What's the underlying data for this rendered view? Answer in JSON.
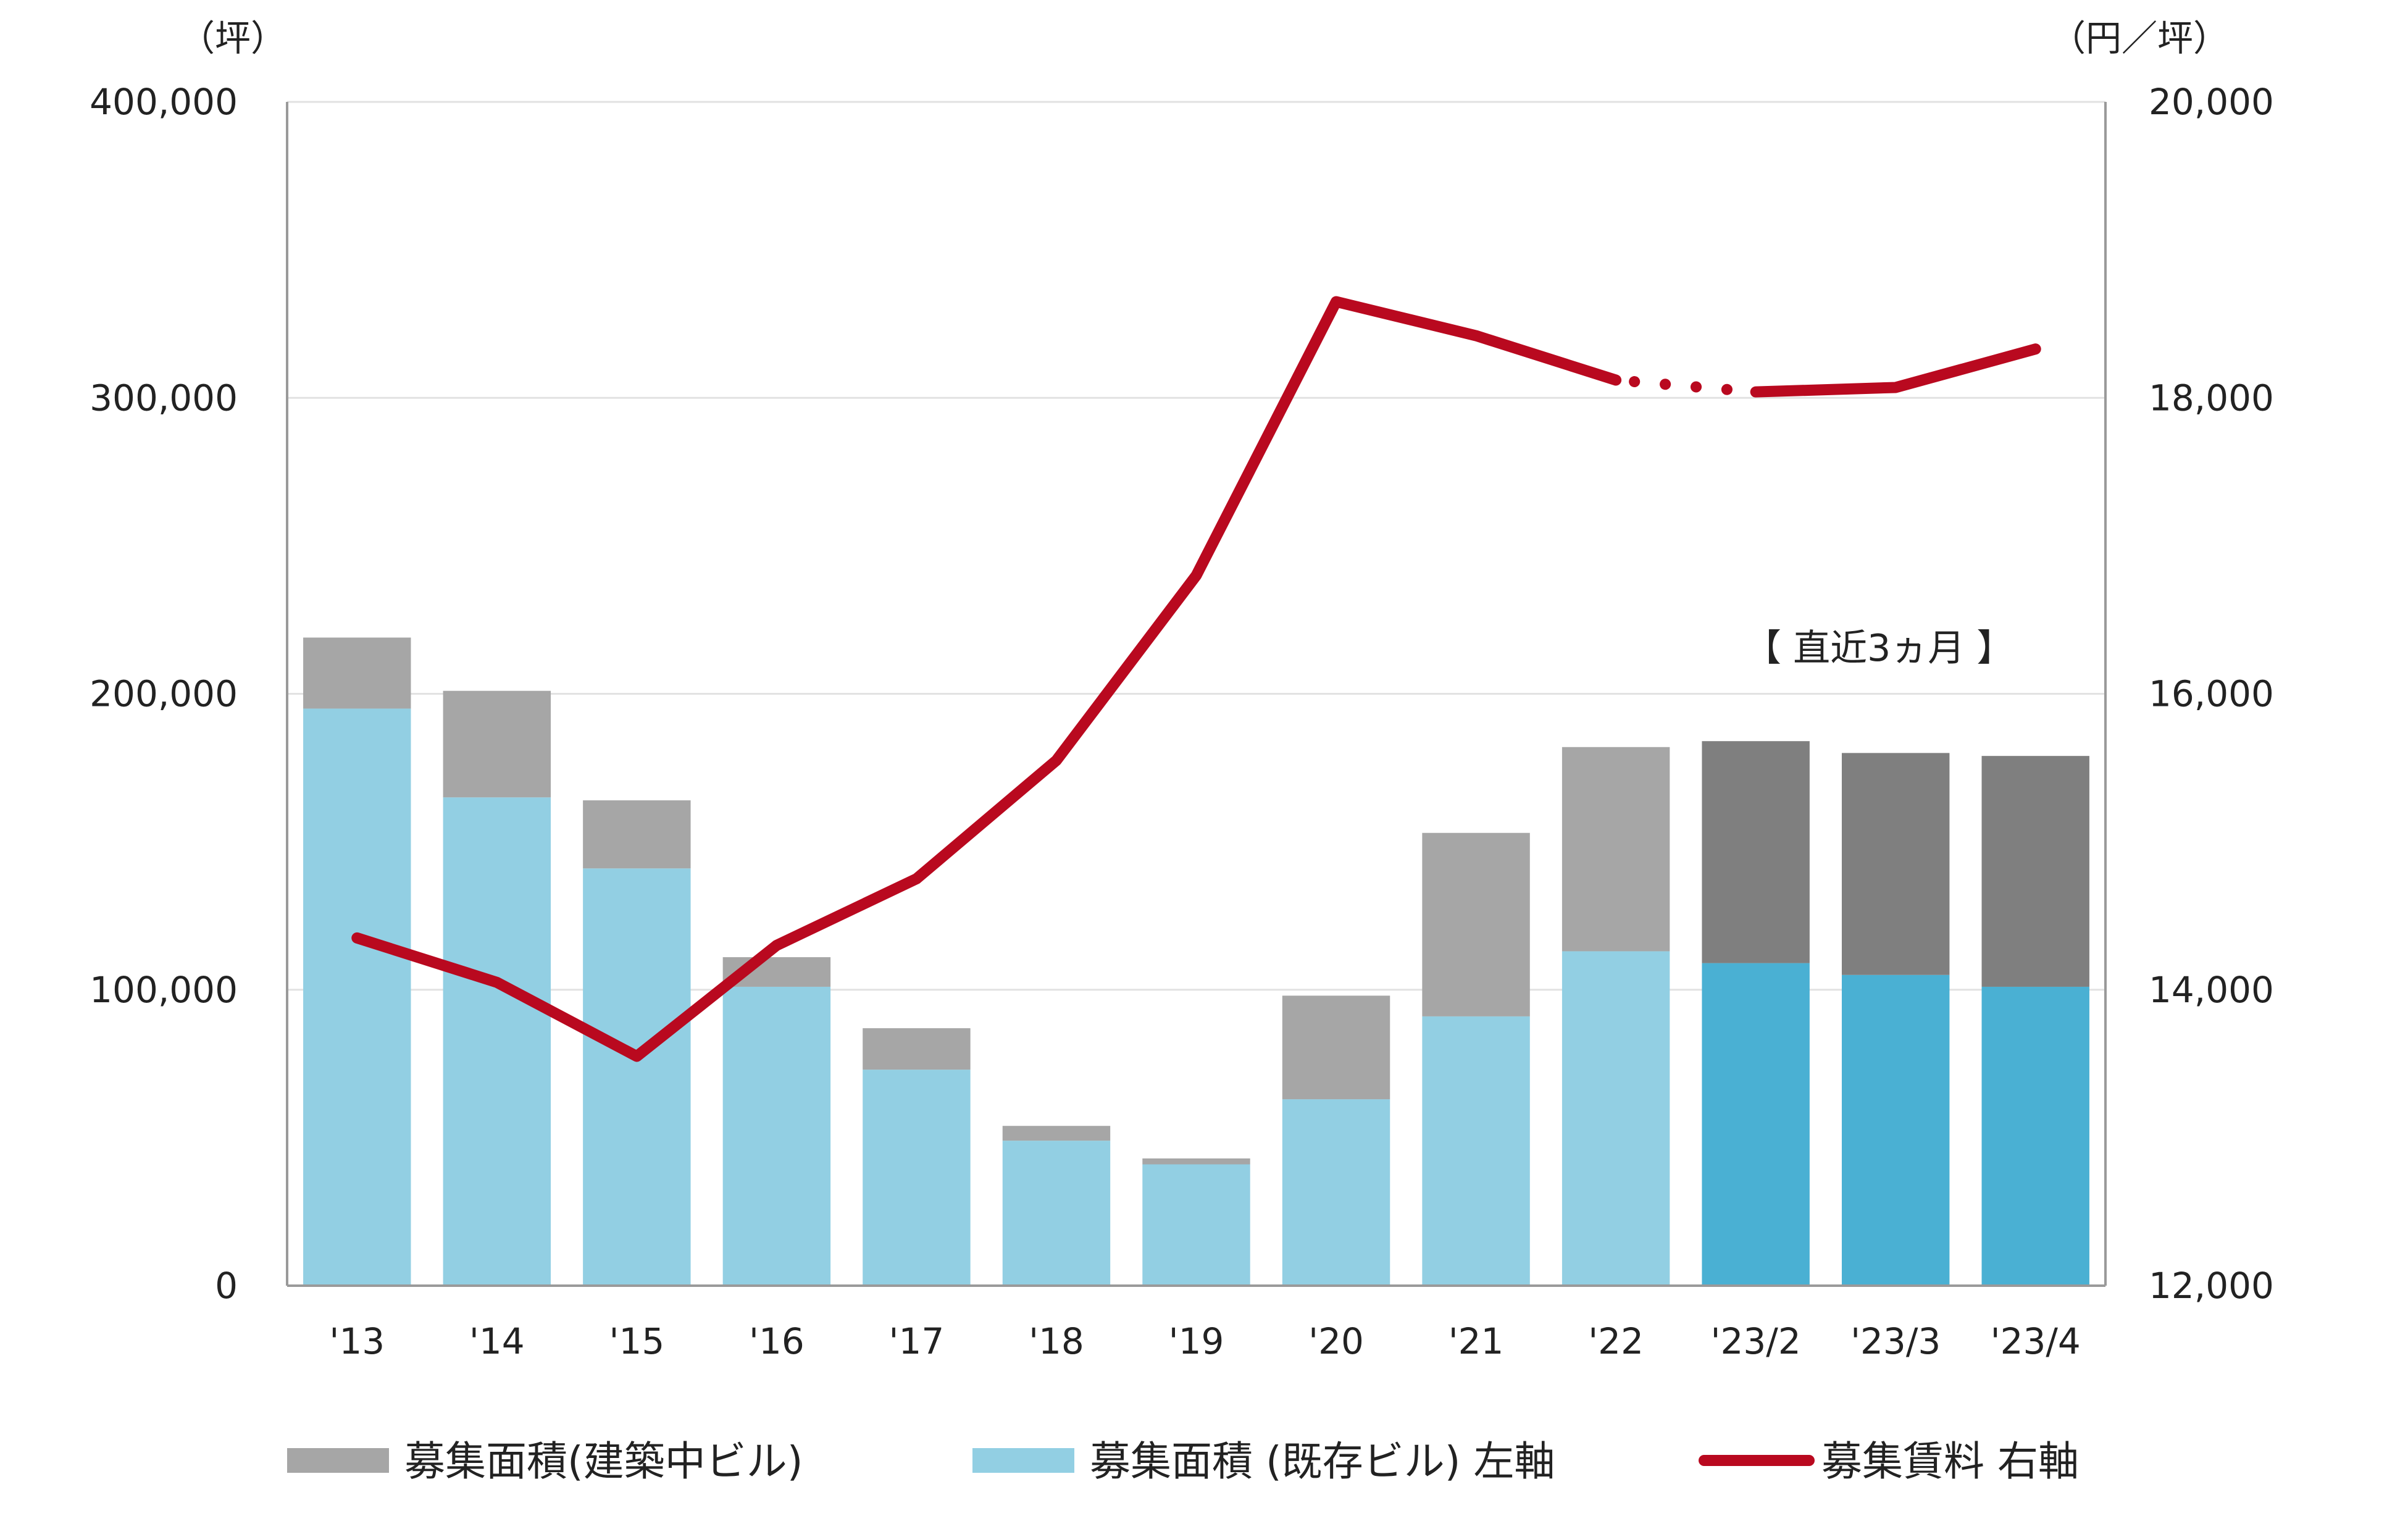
{
  "chart_data": {
    "type": "bar",
    "stacked": true,
    "categories": [
      "'13",
      "'14",
      "'15",
      "'16",
      "'17",
      "'18",
      "'19",
      "'20",
      "'21",
      "'22",
      "'23/2",
      "'23/3",
      "'23/4"
    ],
    "series": [
      {
        "name": "募集面積（既存ビル）左軸",
        "axis": "left",
        "color": "#92cfe3",
        "recent_color": "#4ab0d3",
        "values": [
          195000,
          165000,
          141000,
          101000,
          73000,
          49000,
          41000,
          63000,
          91000,
          113000,
          109000,
          105000,
          101000
        ]
      },
      {
        "name": "募集面積（建築中ビル）",
        "axis": "left",
        "color": "#a6a6a6",
        "recent_color": "#7f7f7f",
        "values": [
          24000,
          36000,
          23000,
          10000,
          14000,
          5000,
          2000,
          35000,
          62000,
          69000,
          75000,
          75000,
          78000
        ]
      },
      {
        "name": "募集賃料 右軸",
        "type": "line",
        "axis": "right",
        "color": "#b9091f",
        "values": [
          14350,
          14050,
          13550,
          14300,
          14750,
          15550,
          16800,
          18650,
          18420,
          18120,
          18040,
          18070,
          18330
        ],
        "dotted_between": [
          9,
          10
        ]
      }
    ],
    "left_axis": {
      "unit": "（坪）",
      "min": 0,
      "max": 400000,
      "ticks": [
        "0",
        "100,000",
        "200,000",
        "300,000",
        "400,000"
      ]
    },
    "right_axis": {
      "unit": "（円／坪）",
      "min": 12000,
      "max": 20000,
      "ticks": [
        "12,000",
        "14,000",
        "16,000",
        "18,000",
        "20,000"
      ]
    },
    "annotation": "【 直近3ヵ月 】",
    "legend": {
      "placement": "bottom",
      "items": [
        {
          "label": "募集面積(建築中ビル)",
          "color": "#a6a6a6",
          "kind": "bar"
        },
        {
          "label": "募集面積 (既存ビル) 左軸",
          "color": "#92cfe3",
          "kind": "bar"
        },
        {
          "label": "募集賃料 右軸",
          "color": "#b9091f",
          "kind": "line"
        }
      ]
    },
    "recent_categories_from_index": 10,
    "grid": true
  }
}
